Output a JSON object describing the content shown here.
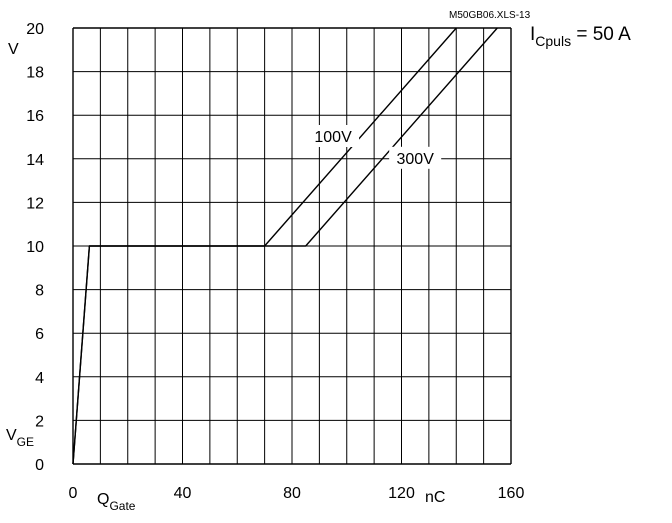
{
  "chart_data": {
    "type": "line",
    "title": "",
    "file_label": "M50GB06.XLS-13",
    "parameter": {
      "symbol": "I",
      "subscript": "Cpuls",
      "rest": " = 50 A"
    },
    "xlabel": {
      "main": "Q",
      "sub": "Gate"
    },
    "x_unit": "nC",
    "ylabel": {
      "main": "V",
      "sub": "GE"
    },
    "y_unit": "V",
    "xlim": [
      0,
      160
    ],
    "ylim": [
      0,
      20
    ],
    "x_ticks": [
      "0",
      "40",
      "80",
      "120",
      "160"
    ],
    "y_ticks": [
      "0",
      "2",
      "4",
      "6",
      "8",
      "10",
      "12",
      "14",
      "16",
      "18",
      "20"
    ],
    "grid": true,
    "series": [
      {
        "name": "100V",
        "points": [
          [
            0,
            0
          ],
          [
            6,
            10
          ],
          [
            70,
            10
          ],
          [
            140,
            20
          ]
        ]
      },
      {
        "name": "300V",
        "points": [
          [
            0,
            0
          ],
          [
            6,
            10
          ],
          [
            85,
            10
          ],
          [
            155,
            20
          ]
        ]
      }
    ]
  }
}
